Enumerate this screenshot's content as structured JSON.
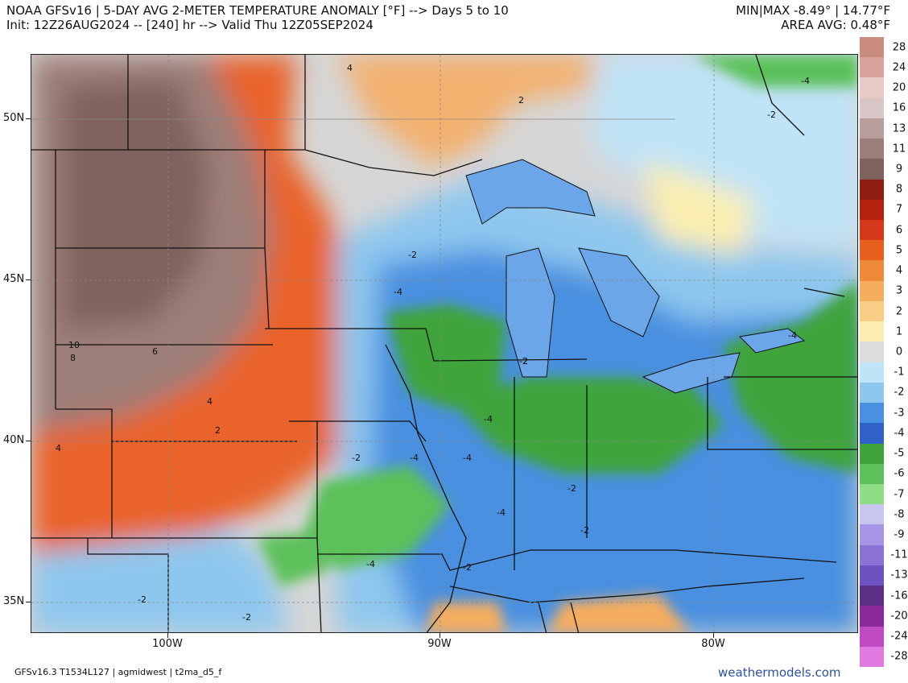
{
  "header": {
    "title_line1": "NOAA GFSv16 | 5-DAY AVG 2-METER TEMPERATURE ANOMALY [°F] --> Days 5 to 10",
    "title_line2": "Init: 12Z26AUG2024 -- [240] hr --> Valid Thu 12Z05SEP2024",
    "minmax": "MIN|MAX -8.49° | 14.77°F",
    "area_avg": "AREA AVG: 0.48°F"
  },
  "axes": {
    "lat_labels": [
      "50N",
      "45N",
      "40N",
      "35N"
    ],
    "lon_labels": [
      "100W",
      "90W",
      "80W"
    ]
  },
  "legend": {
    "labels": [
      "28",
      "24",
      "20",
      "16",
      "13",
      "11",
      "9",
      "8",
      "7",
      "6",
      "5",
      "4",
      "3",
      "2",
      "1",
      "0",
      "-1",
      "-2",
      "-3",
      "-4",
      "-5",
      "-6",
      "-7",
      "-8",
      "-9",
      "-11",
      "-13",
      "-16",
      "-20",
      "-24",
      "-28"
    ],
    "colors": [
      "#c98b7c",
      "#d7a39a",
      "#e8cbc7",
      "#d8c5c5",
      "#b79e9a",
      "#9c7f7a",
      "#7f625d",
      "#8d1d0f",
      "#b3220e",
      "#d6381a",
      "#e8601f",
      "#ef8a38",
      "#f5ad5e",
      "#f8cd86",
      "#fbeeb0",
      "#dcdcdc",
      "#bfe3f7",
      "#8ec7ee",
      "#4a90e0",
      "#2f61c9",
      "#3fa43c",
      "#5cc15a",
      "#8fdd84",
      "#c6c6f0",
      "#a796e6",
      "#8b72d6",
      "#6f52c2",
      "#5b2f86",
      "#8a2a9a",
      "#c04ac4",
      "#e07ae0"
    ]
  },
  "map": {
    "contour_labels": [
      "4",
      "2",
      "-4",
      "-2",
      "-2",
      "-4",
      "-2",
      "-4",
      "-4",
      "-2",
      "-4",
      "-4",
      "-4",
      "-2",
      "-2",
      "-2",
      "-4",
      "-2",
      "-2",
      "-2",
      "10",
      "8",
      "6",
      "4",
      "2",
      "4"
    ]
  },
  "footer": {
    "left": "GFSv16.3 T1534L127 | agmidwest | t2ma_d5_f",
    "right": "weathermodels.com"
  }
}
